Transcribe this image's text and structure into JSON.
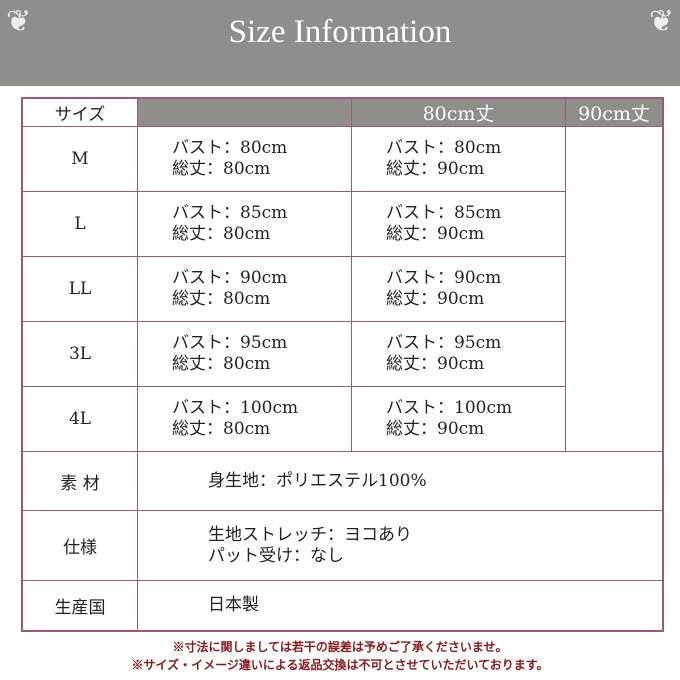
{
  "header": {
    "title": "Size Information"
  },
  "table": {
    "size_label": "サイズ",
    "columns": [
      "80cm丈",
      "90cm丈"
    ],
    "rows": [
      {
        "size": "M",
        "c80": [
          "バスト：80cm",
          "総丈：80cm"
        ],
        "c90": [
          "バスト：80cm",
          "総丈：90cm"
        ]
      },
      {
        "size": "L",
        "c80": [
          "バスト：85cm",
          "総丈：80cm"
        ],
        "c90": [
          "バスト：85cm",
          "総丈：90cm"
        ]
      },
      {
        "size": "LL",
        "c80": [
          "バスト：90cm",
          "総丈：80cm"
        ],
        "c90": [
          "バスト：90cm",
          "総丈：90cm"
        ]
      },
      {
        "size": "3L",
        "c80": [
          "バスト：95cm",
          "総丈：80cm"
        ],
        "c90": [
          "バスト：95cm",
          "総丈：90cm"
        ]
      },
      {
        "size": "4L",
        "c80": [
          "バスト：100cm",
          "総丈：80cm"
        ],
        "c90": [
          "バスト：100cm",
          "総丈：90cm"
        ]
      }
    ],
    "material": {
      "label": "素 材",
      "value": "身生地：ポリエステル100%"
    },
    "spec": {
      "label": "仕様",
      "lines": [
        "生地ストレッチ：ヨコあり",
        "パット受け：なし"
      ]
    },
    "origin": {
      "label": "生産国",
      "value": "日本製"
    }
  },
  "notes": [
    "※寸法に関しましては若干の誤差は予めご了承くださいませ。",
    "※サイズ・イメージ違いによる返品交換は不可とさせていただいております。"
  ]
}
